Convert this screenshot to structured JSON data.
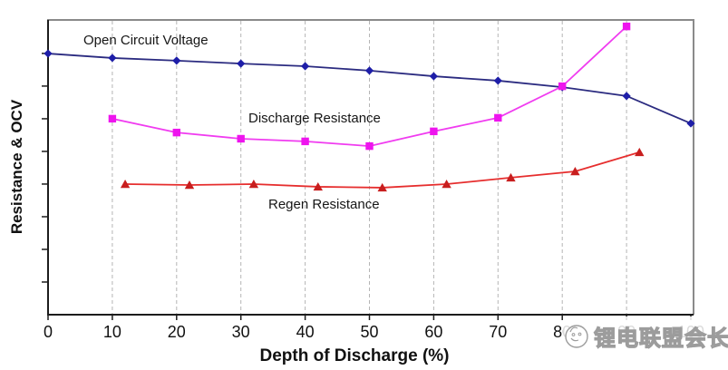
{
  "chart_data": {
    "type": "line",
    "title": "",
    "xlabel": "Depth of Discharge (%)",
    "ylabel": "Resistance & OCV",
    "xlim": [
      0,
      100
    ],
    "ylim": [
      0,
      1
    ],
    "x_ticks": [
      "0",
      "10",
      "20",
      "30",
      "40",
      "50",
      "60",
      "70",
      "80",
      "90",
      "100"
    ],
    "y_ticks_labeled": false,
    "grid": "vertical dashed gridlines at every 10% DOD",
    "legend_position": "inline text annotations on plot",
    "note": "Y axis has unlabeled tick marks only; series y values are normalized 0-1 relative to plot height",
    "series": [
      {
        "name": "Open Circuit Voltage",
        "marker": "diamond",
        "color": "#1e1ea8",
        "line_color": "#2b2b80",
        "x": [
          0,
          10,
          20,
          30,
          40,
          50,
          60,
          70,
          80,
          90,
          100
        ],
        "y": [
          0.886,
          0.871,
          0.862,
          0.852,
          0.843,
          0.828,
          0.809,
          0.794,
          0.772,
          0.742,
          0.649
        ]
      },
      {
        "name": "Discharge Resistance",
        "marker": "square",
        "color": "#ee14ee",
        "line_color": "#f03cf0",
        "x": [
          10,
          20,
          30,
          40,
          50,
          60,
          70,
          80,
          90
        ],
        "y": [
          0.665,
          0.618,
          0.597,
          0.588,
          0.572,
          0.622,
          0.668,
          0.775,
          0.978
        ]
      },
      {
        "name": "Regen Resistance",
        "marker": "triangle",
        "color": "#c81e1e",
        "line_color": "#e62e2e",
        "x": [
          12,
          22,
          32,
          42,
          52,
          62,
          72,
          82,
          92
        ],
        "y": [
          0.443,
          0.44,
          0.443,
          0.434,
          0.431,
          0.443,
          0.465,
          0.486,
          0.551
        ]
      }
    ],
    "colors": {
      "gridline": "#b5b5b5",
      "axis": "#1c1c1c",
      "frame_border": "#8a8a8a",
      "tick_label": "#111111"
    }
  },
  "watermark": {
    "icon": "mascot-circle-icon",
    "text": "锂电联盟会长",
    "color": "#9c9c9c"
  }
}
